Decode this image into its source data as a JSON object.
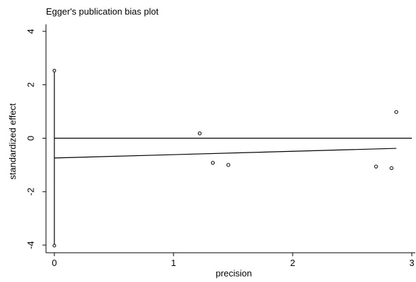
{
  "chart_data": {
    "type": "scatter",
    "title": "Egger's publication bias plot",
    "xlabel": "precision",
    "ylabel": "standardized effect",
    "xlim": [
      0,
      3
    ],
    "ylim": [
      -4,
      4
    ],
    "xticks": [
      0,
      1,
      2,
      3
    ],
    "yticks": [
      -4,
      -2,
      0,
      2,
      4
    ],
    "grid": false,
    "legend": "none",
    "points": [
      {
        "x": 1.22,
        "y": 0.18
      },
      {
        "x": 1.33,
        "y": -0.92
      },
      {
        "x": 1.46,
        "y": -1.0
      },
      {
        "x": 2.7,
        "y": -1.06
      },
      {
        "x": 2.83,
        "y": -1.12
      },
      {
        "x": 2.87,
        "y": 0.98
      }
    ],
    "zero_line": {
      "y": 0
    },
    "regression_line": {
      "x": [
        0,
        2.87
      ],
      "y": [
        -0.74,
        -0.38
      ]
    },
    "intercept_ci": {
      "x": 0,
      "y": [
        -4.02,
        2.53
      ]
    }
  }
}
